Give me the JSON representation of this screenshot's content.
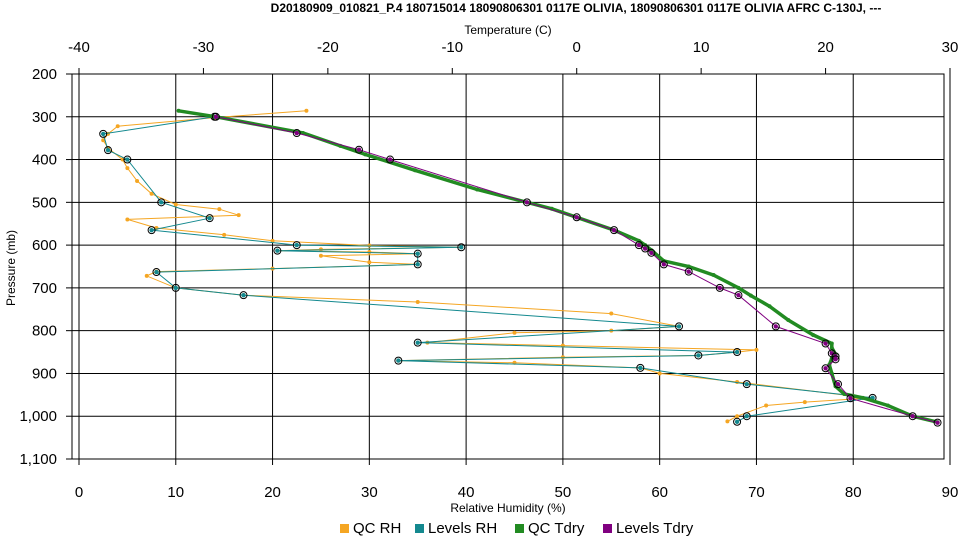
{
  "chart_data": {
    "type": "line",
    "title": "D20180909_010821_P.4 180715014 18090806301 0117E OLIVIA, 18090806301 0117E OLIVIA AFRC C-130J, ---",
    "xlabel_bottom": "Relative Humidity (%)",
    "xlabel_top": "Temperature (C)",
    "ylabel": "Pressure (mb)",
    "x_bottom_lim": [
      0,
      90
    ],
    "x_top_lim": [
      -40,
      30
    ],
    "ylim": [
      200,
      1100
    ],
    "y_inverted": true,
    "grid": true,
    "legend_position": "bottom",
    "x_bottom_ticks": [
      "0",
      "10",
      "20",
      "30",
      "40",
      "50",
      "60",
      "70",
      "80",
      "90"
    ],
    "x_top_ticks": [
      "-40",
      "-30",
      "-20",
      "-10",
      "0",
      "10",
      "20",
      "30"
    ],
    "y_ticks": [
      "200",
      "300",
      "400",
      "500",
      "600",
      "700",
      "800",
      "900",
      "1,000",
      "1,100"
    ],
    "series": [
      {
        "name": "QC RH",
        "axis": "bottom",
        "color": "#f5a623",
        "points": [
          [
            23.5,
            286
          ],
          [
            14,
            302
          ],
          [
            4,
            322
          ],
          [
            3,
            340
          ],
          [
            2.5,
            355
          ],
          [
            3,
            373
          ],
          [
            4.5,
            400
          ],
          [
            5,
            420
          ],
          [
            6,
            450
          ],
          [
            7.5,
            480
          ],
          [
            10,
            505
          ],
          [
            14.5,
            516
          ],
          [
            16.5,
            530
          ],
          [
            5,
            540
          ],
          [
            8,
            560
          ],
          [
            15,
            576
          ],
          [
            20,
            590
          ],
          [
            30,
            601
          ],
          [
            39.5,
            605
          ],
          [
            25,
            610
          ],
          [
            20.5,
            613
          ],
          [
            30,
            616
          ],
          [
            35,
            620
          ],
          [
            25,
            625
          ],
          [
            30,
            640
          ],
          [
            35,
            645
          ],
          [
            20,
            655
          ],
          [
            8,
            662
          ],
          [
            7,
            672
          ],
          [
            10,
            700
          ],
          [
            17,
            717
          ],
          [
            35,
            733
          ],
          [
            55,
            760
          ],
          [
            62,
            790
          ],
          [
            55,
            800
          ],
          [
            45,
            805
          ],
          [
            36,
            828
          ],
          [
            50,
            835
          ],
          [
            70,
            845
          ],
          [
            68,
            850
          ],
          [
            64,
            858
          ],
          [
            50,
            862
          ],
          [
            33,
            870
          ],
          [
            45,
            875
          ],
          [
            58,
            887
          ],
          [
            60,
            900
          ],
          [
            68,
            920
          ],
          [
            80,
            953
          ],
          [
            82,
            957
          ],
          [
            75,
            967
          ],
          [
            71,
            975
          ],
          [
            68,
            1000
          ],
          [
            67,
            1012
          ]
        ]
      },
      {
        "name": "Levels RH",
        "axis": "bottom",
        "color": "#14898f",
        "points": [
          [
            14,
            300
          ],
          [
            2.5,
            340
          ],
          [
            3,
            378
          ],
          [
            5,
            400
          ],
          [
            8.5,
            500
          ],
          [
            13.5,
            537
          ],
          [
            7.5,
            565
          ],
          [
            22.5,
            600
          ],
          [
            39.5,
            605
          ],
          [
            20.5,
            613
          ],
          [
            35,
            620
          ],
          [
            35,
            645
          ],
          [
            8,
            663
          ],
          [
            10,
            700
          ],
          [
            17,
            717
          ],
          [
            62,
            790
          ],
          [
            35,
            828
          ],
          [
            68,
            850
          ],
          [
            64,
            858
          ],
          [
            33,
            870
          ],
          [
            58,
            887
          ],
          [
            69,
            925
          ],
          [
            82,
            957
          ],
          [
            69,
            1000
          ],
          [
            68,
            1013
          ]
        ]
      },
      {
        "name": "QC Tdry",
        "axis": "top",
        "color": "#228b22",
        "points": [
          [
            -32,
            286
          ],
          [
            -29,
            300
          ],
          [
            -22,
            338
          ],
          [
            -19,
            368
          ],
          [
            -17,
            388
          ],
          [
            -13,
            425
          ],
          [
            -8,
            470
          ],
          [
            -4,
            500
          ],
          [
            -2,
            515
          ],
          [
            0,
            535
          ],
          [
            3,
            565
          ],
          [
            5,
            590
          ],
          [
            5.5,
            600
          ],
          [
            6,
            612
          ],
          [
            7,
            637
          ],
          [
            9,
            650
          ],
          [
            11,
            670
          ],
          [
            13,
            700
          ],
          [
            14,
            718
          ],
          [
            15.5,
            743
          ],
          [
            17,
            775
          ],
          [
            19,
            810
          ],
          [
            20.5,
            830
          ],
          [
            20.5,
            840
          ],
          [
            20.8,
            855
          ],
          [
            20.5,
            865
          ],
          [
            20.3,
            880
          ],
          [
            20.5,
            900
          ],
          [
            20.8,
            930
          ],
          [
            21.5,
            948
          ],
          [
            23,
            957
          ],
          [
            25,
            975
          ],
          [
            27,
            1000
          ],
          [
            29,
            1014
          ]
        ]
      },
      {
        "name": "Levels Tdry",
        "axis": "top",
        "color": "#800080",
        "points": [
          [
            -29,
            300
          ],
          [
            -22.5,
            338
          ],
          [
            -17.5,
            377
          ],
          [
            -15,
            400
          ],
          [
            -4,
            500
          ],
          [
            0,
            535
          ],
          [
            3,
            565
          ],
          [
            5,
            600
          ],
          [
            5.5,
            608
          ],
          [
            6,
            618
          ],
          [
            7,
            645
          ],
          [
            9,
            662
          ],
          [
            11.5,
            700
          ],
          [
            13,
            717
          ],
          [
            16,
            790
          ],
          [
            20,
            830
          ],
          [
            20.5,
            853
          ],
          [
            20.8,
            860
          ],
          [
            20.8,
            867
          ],
          [
            20,
            888
          ],
          [
            21,
            925
          ],
          [
            22,
            958
          ],
          [
            27,
            1000
          ],
          [
            29,
            1015
          ]
        ]
      }
    ]
  }
}
